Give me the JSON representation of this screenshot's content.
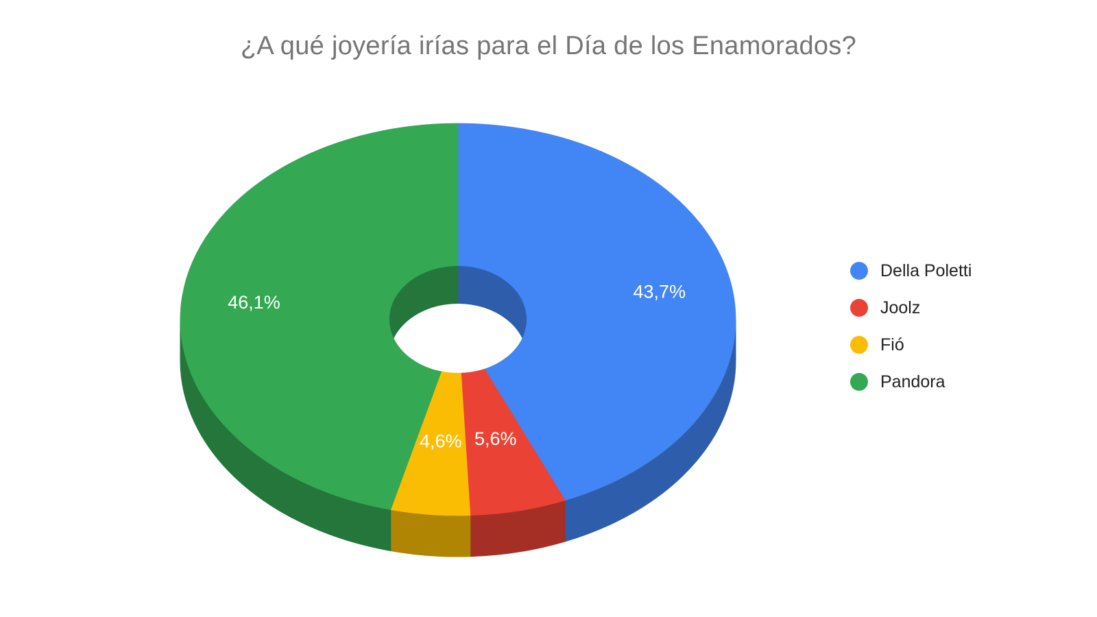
{
  "chart_data": {
    "type": "pie",
    "title": "¿A qué joyería irías para el Día de los Enamorados?",
    "style": "3d-donut",
    "legend_position": "right",
    "slices": [
      {
        "name": "Della Poletti",
        "value": 43.7,
        "label": "43,7%",
        "color": "#4285F4",
        "side_color": "#2E5EAB"
      },
      {
        "name": "Joolz",
        "value": 5.6,
        "label": "5,6%",
        "color": "#EA4335",
        "side_color": "#A52F25"
      },
      {
        "name": "Fió",
        "value": 4.6,
        "label": "4,6%",
        "color": "#FBBC04",
        "side_color": "#B08503"
      },
      {
        "name": "Pandora",
        "value": 46.1,
        "label": "46,1%",
        "color": "#34A853",
        "side_color": "#24763A"
      }
    ]
  }
}
